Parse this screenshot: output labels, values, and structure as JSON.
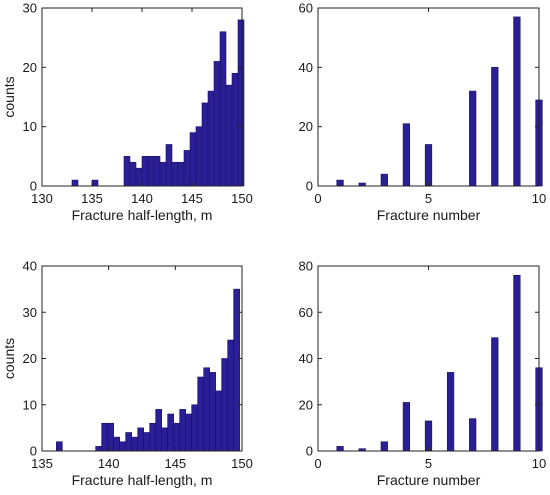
{
  "chart_data": [
    {
      "type": "bar",
      "xlabel": "Fracture half-length, m",
      "ylabel": "counts",
      "xlim": [
        130,
        150
      ],
      "ylim": [
        0,
        30
      ],
      "xticks": [
        130,
        135,
        140,
        145,
        150
      ],
      "yticks": [
        0,
        10,
        20,
        30
      ],
      "bar_width": 0.6,
      "x": [
        133.3,
        135.3,
        138.5,
        139.1,
        139.7,
        140.3,
        140.9,
        141.5,
        142.1,
        142.7,
        143.3,
        143.9,
        144.5,
        145.1,
        145.7,
        146.3,
        146.9,
        147.5,
        148.1,
        148.7,
        149.3,
        149.9
      ],
      "values": [
        1,
        1,
        5,
        4,
        3,
        5,
        5,
        5,
        4,
        7,
        4,
        4,
        6,
        9,
        10,
        14,
        16,
        21,
        26,
        17,
        19,
        28
      ]
    },
    {
      "type": "bar",
      "xlabel": "Fracture number",
      "ylabel": "",
      "xlim": [
        0,
        10
      ],
      "ylim": [
        0,
        60
      ],
      "xticks": [
        0,
        5,
        10
      ],
      "yticks": [
        0,
        20,
        40,
        60
      ],
      "bar_width": 0.3,
      "x": [
        1,
        2,
        3,
        4,
        5,
        7,
        8,
        9,
        10
      ],
      "values": [
        2,
        1,
        4,
        21,
        14,
        32,
        40,
        57,
        29
      ]
    },
    {
      "type": "bar",
      "xlabel": "Fracture half-length, m",
      "ylabel": "counts",
      "xlim": [
        135,
        150
      ],
      "ylim": [
        0,
        40
      ],
      "xticks": [
        135,
        140,
        145,
        150
      ],
      "yticks": [
        0,
        10,
        20,
        30,
        40
      ],
      "bar_width": 0.45,
      "x": [
        136.3,
        139.25,
        139.7,
        140.15,
        140.6,
        141.05,
        141.5,
        141.95,
        142.4,
        142.85,
        143.3,
        143.75,
        144.2,
        144.65,
        145.1,
        145.55,
        146.0,
        146.45,
        146.9,
        147.35,
        147.8,
        148.25,
        148.7,
        149.15,
        149.6
      ],
      "values": [
        2,
        1,
        6,
        6,
        3,
        2,
        4,
        3,
        5,
        4,
        6,
        9,
        5,
        8,
        6,
        9,
        8,
        10,
        16,
        18,
        17,
        13,
        20,
        24,
        35
      ]
    },
    {
      "type": "bar",
      "xlabel": "Fracture number",
      "ylabel": "",
      "xlim": [
        0,
        10
      ],
      "ylim": [
        0,
        80
      ],
      "xticks": [
        0,
        5,
        10
      ],
      "yticks": [
        0,
        20,
        40,
        60,
        80
      ],
      "bar_width": 0.3,
      "x": [
        1,
        2,
        3,
        4,
        5,
        6,
        7,
        8,
        9,
        10
      ],
      "values": [
        2,
        1,
        4,
        21,
        13,
        34,
        14,
        49,
        76,
        36
      ]
    }
  ]
}
